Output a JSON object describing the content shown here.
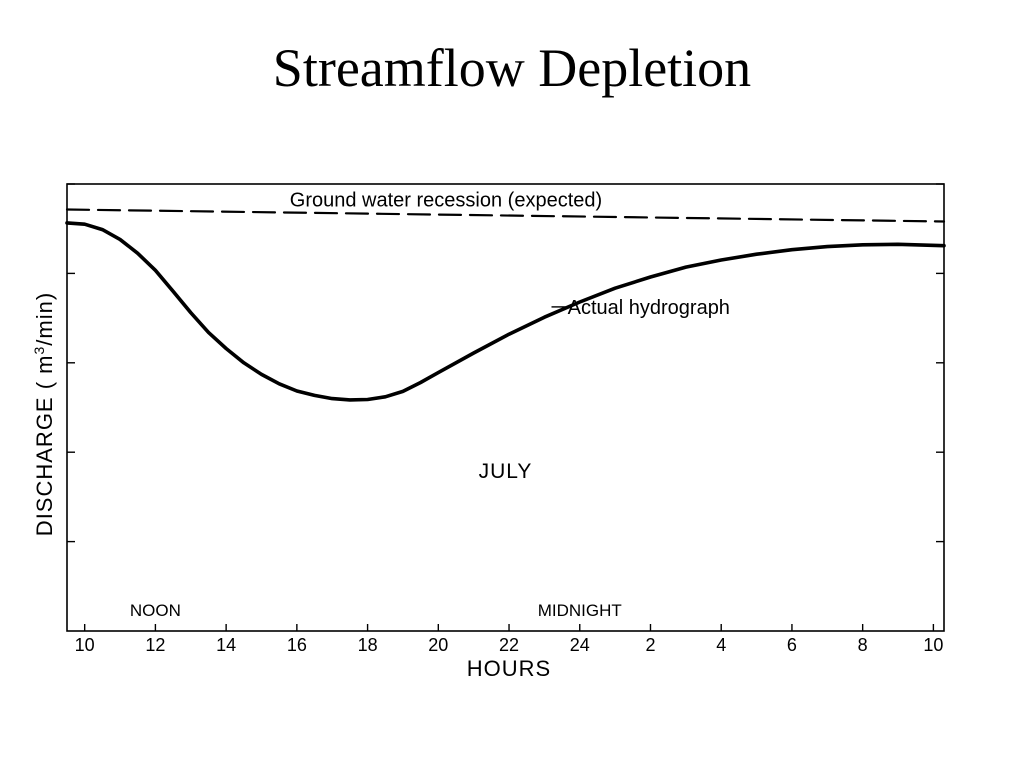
{
  "slide": {
    "title": "Streamflow Depletion"
  },
  "chart_data": {
    "type": "line",
    "xlabel": "HOURS",
    "ylabel_main": "DISCHARGE ( m",
    "ylabel_sup": "3",
    "ylabel_end": "/min)",
    "x_ticks": [
      "10",
      "12",
      "14",
      "16",
      "18",
      "20",
      "22",
      "24",
      "2",
      "4",
      "6",
      "8",
      "10"
    ],
    "x_tick_hours": [
      10,
      12,
      14,
      16,
      18,
      20,
      22,
      24,
      26,
      28,
      30,
      32,
      34
    ],
    "xlim": [
      9.5,
      34.3
    ],
    "y_tick_count": 5,
    "ylim": [
      0,
      1
    ],
    "grid": false,
    "period_labels": [
      {
        "text": "NOON",
        "x": 12
      },
      {
        "text": "MIDNIGHT",
        "x": 24
      }
    ],
    "annotation": {
      "text": "JULY",
      "x": 21.9,
      "y": 0.36
    },
    "series": [
      {
        "name": "Ground water recession (expected)",
        "style": "dashed",
        "label_x": 15.8,
        "label_y": 0.965,
        "points": [
          [
            9.5,
            0.943
          ],
          [
            34.3,
            0.916
          ]
        ]
      },
      {
        "name": "Actual hydrograph",
        "style": "solid",
        "leader": [
          [
            23.2,
            0.725
          ],
          [
            23.6,
            0.725
          ]
        ],
        "label_x": 23.6,
        "label_y": 0.725,
        "points": [
          [
            9.5,
            0.913
          ],
          [
            10.0,
            0.91
          ],
          [
            10.5,
            0.898
          ],
          [
            11.0,
            0.876
          ],
          [
            11.5,
            0.845
          ],
          [
            12.0,
            0.807
          ],
          [
            12.5,
            0.76
          ],
          [
            13.0,
            0.712
          ],
          [
            13.5,
            0.668
          ],
          [
            14.0,
            0.632
          ],
          [
            14.5,
            0.6
          ],
          [
            15.0,
            0.574
          ],
          [
            15.5,
            0.553
          ],
          [
            16.0,
            0.537
          ],
          [
            16.5,
            0.527
          ],
          [
            17.0,
            0.52
          ],
          [
            17.5,
            0.517
          ],
          [
            18.0,
            0.518
          ],
          [
            18.5,
            0.524
          ],
          [
            19.0,
            0.536
          ],
          [
            19.5,
            0.556
          ],
          [
            20.0,
            0.578
          ],
          [
            21.0,
            0.622
          ],
          [
            22.0,
            0.664
          ],
          [
            23.0,
            0.702
          ],
          [
            24.0,
            0.736
          ],
          [
            25.0,
            0.767
          ],
          [
            26.0,
            0.792
          ],
          [
            27.0,
            0.814
          ],
          [
            28.0,
            0.83
          ],
          [
            29.0,
            0.843
          ],
          [
            30.0,
            0.853
          ],
          [
            31.0,
            0.86
          ],
          [
            32.0,
            0.864
          ],
          [
            33.0,
            0.865
          ],
          [
            34.3,
            0.862
          ]
        ]
      }
    ]
  }
}
